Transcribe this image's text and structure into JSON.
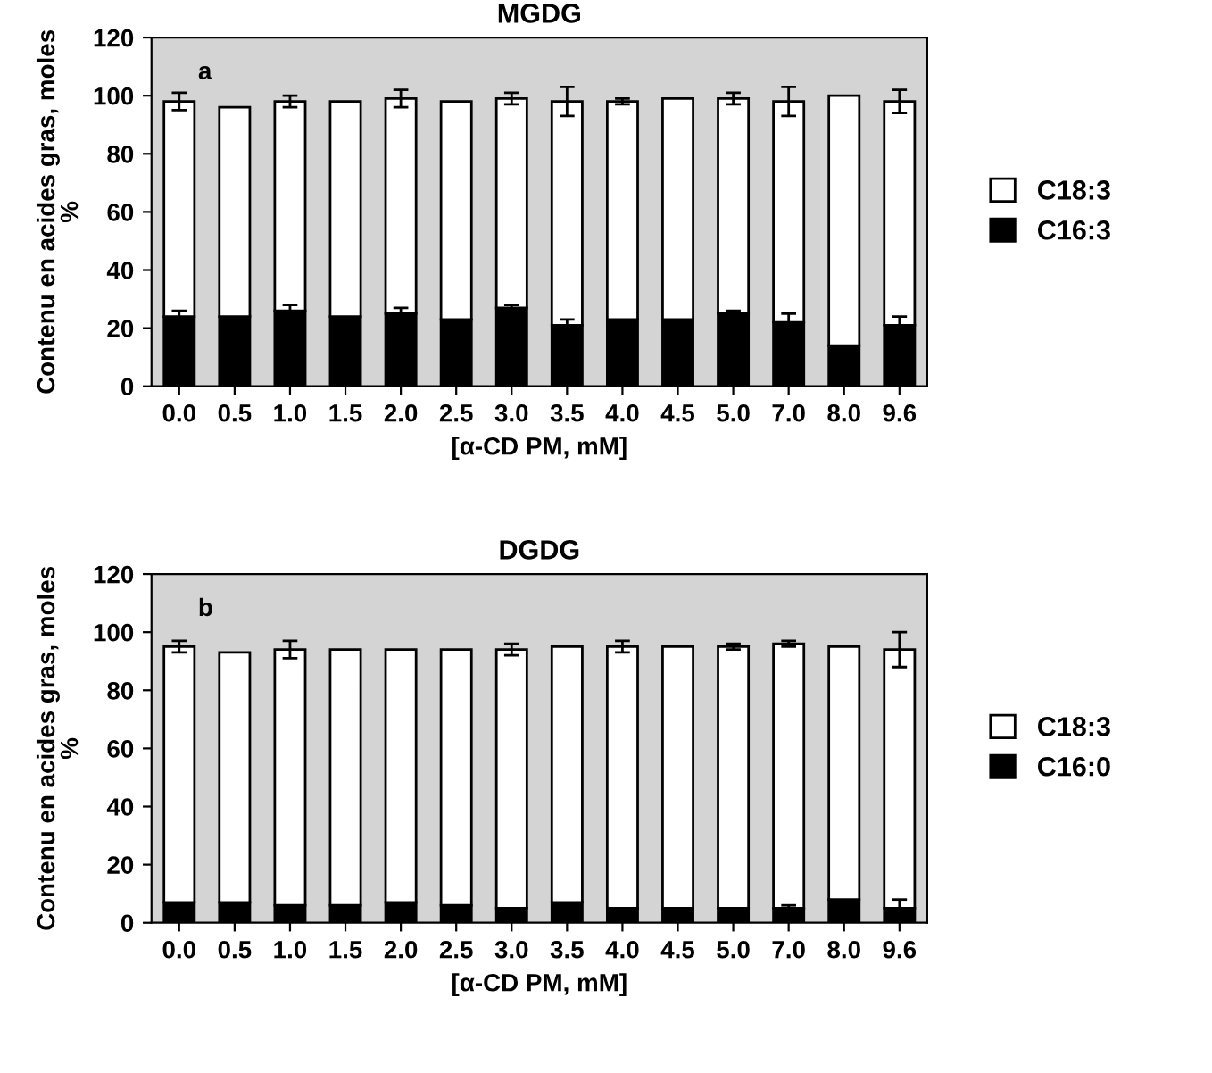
{
  "chart_data": [
    {
      "type": "bar",
      "stacked": true,
      "title": "MGDG",
      "xlabel": "[α-CD PM, mM]",
      "ylabel": "Contenu en acides gras, moles %",
      "categories": [
        "0.0",
        "0.5",
        "1.0",
        "1.5",
        "2.0",
        "2.5",
        "3.0",
        "3.5",
        "4.0",
        "4.5",
        "5.0",
        "7.0",
        "8.0",
        "9.6"
      ],
      "ylim": [
        0,
        120
      ],
      "yticks": [
        0,
        20,
        40,
        60,
        80,
        100,
        120
      ],
      "grid": false,
      "legend": "right",
      "annotations": [
        "a"
      ],
      "series": [
        {
          "name": "C16:3",
          "color": "#000000",
          "values": [
            24,
            24,
            26,
            24,
            25,
            23,
            27,
            21,
            23,
            23,
            25,
            22,
            14,
            21
          ],
          "errors": [
            2,
            null,
            2,
            null,
            2,
            null,
            1,
            2,
            null,
            null,
            1,
            3,
            null,
            3
          ]
        },
        {
          "name": "C18:3",
          "color": "#ffffff",
          "values": [
            74,
            72,
            72,
            74,
            74,
            75,
            72,
            77,
            75,
            76,
            74,
            76,
            86,
            77
          ],
          "errors": [
            3,
            null,
            2,
            null,
            3,
            null,
            2,
            5,
            1,
            null,
            2,
            5,
            null,
            4
          ]
        }
      ]
    },
    {
      "type": "bar",
      "stacked": true,
      "title": "DGDG",
      "xlabel": "[α-CD PM, mM]",
      "ylabel": "Contenu en acides gras, moles %",
      "categories": [
        "0.0",
        "0.5",
        "1.0",
        "1.5",
        "2.0",
        "2.5",
        "3.0",
        "3.5",
        "4.0",
        "4.5",
        "5.0",
        "7.0",
        "8.0",
        "9.6"
      ],
      "ylim": [
        0,
        120
      ],
      "yticks": [
        0,
        20,
        40,
        60,
        80,
        100,
        120
      ],
      "grid": false,
      "legend": "right",
      "annotations": [
        "b"
      ],
      "series": [
        {
          "name": "C16:0",
          "color": "#000000",
          "values": [
            7,
            7,
            6,
            6,
            7,
            6,
            5,
            7,
            5,
            5,
            5,
            5,
            8,
            5
          ],
          "errors": [
            null,
            null,
            null,
            null,
            null,
            null,
            null,
            null,
            null,
            null,
            null,
            1,
            null,
            3
          ]
        },
        {
          "name": "C18:3",
          "color": "#ffffff",
          "values": [
            88,
            86,
            88,
            88,
            87,
            88,
            89,
            88,
            90,
            90,
            90,
            91,
            87,
            89
          ],
          "errors": [
            2,
            null,
            3,
            null,
            null,
            null,
            2,
            null,
            2,
            null,
            1,
            1,
            null,
            6
          ]
        }
      ]
    }
  ]
}
